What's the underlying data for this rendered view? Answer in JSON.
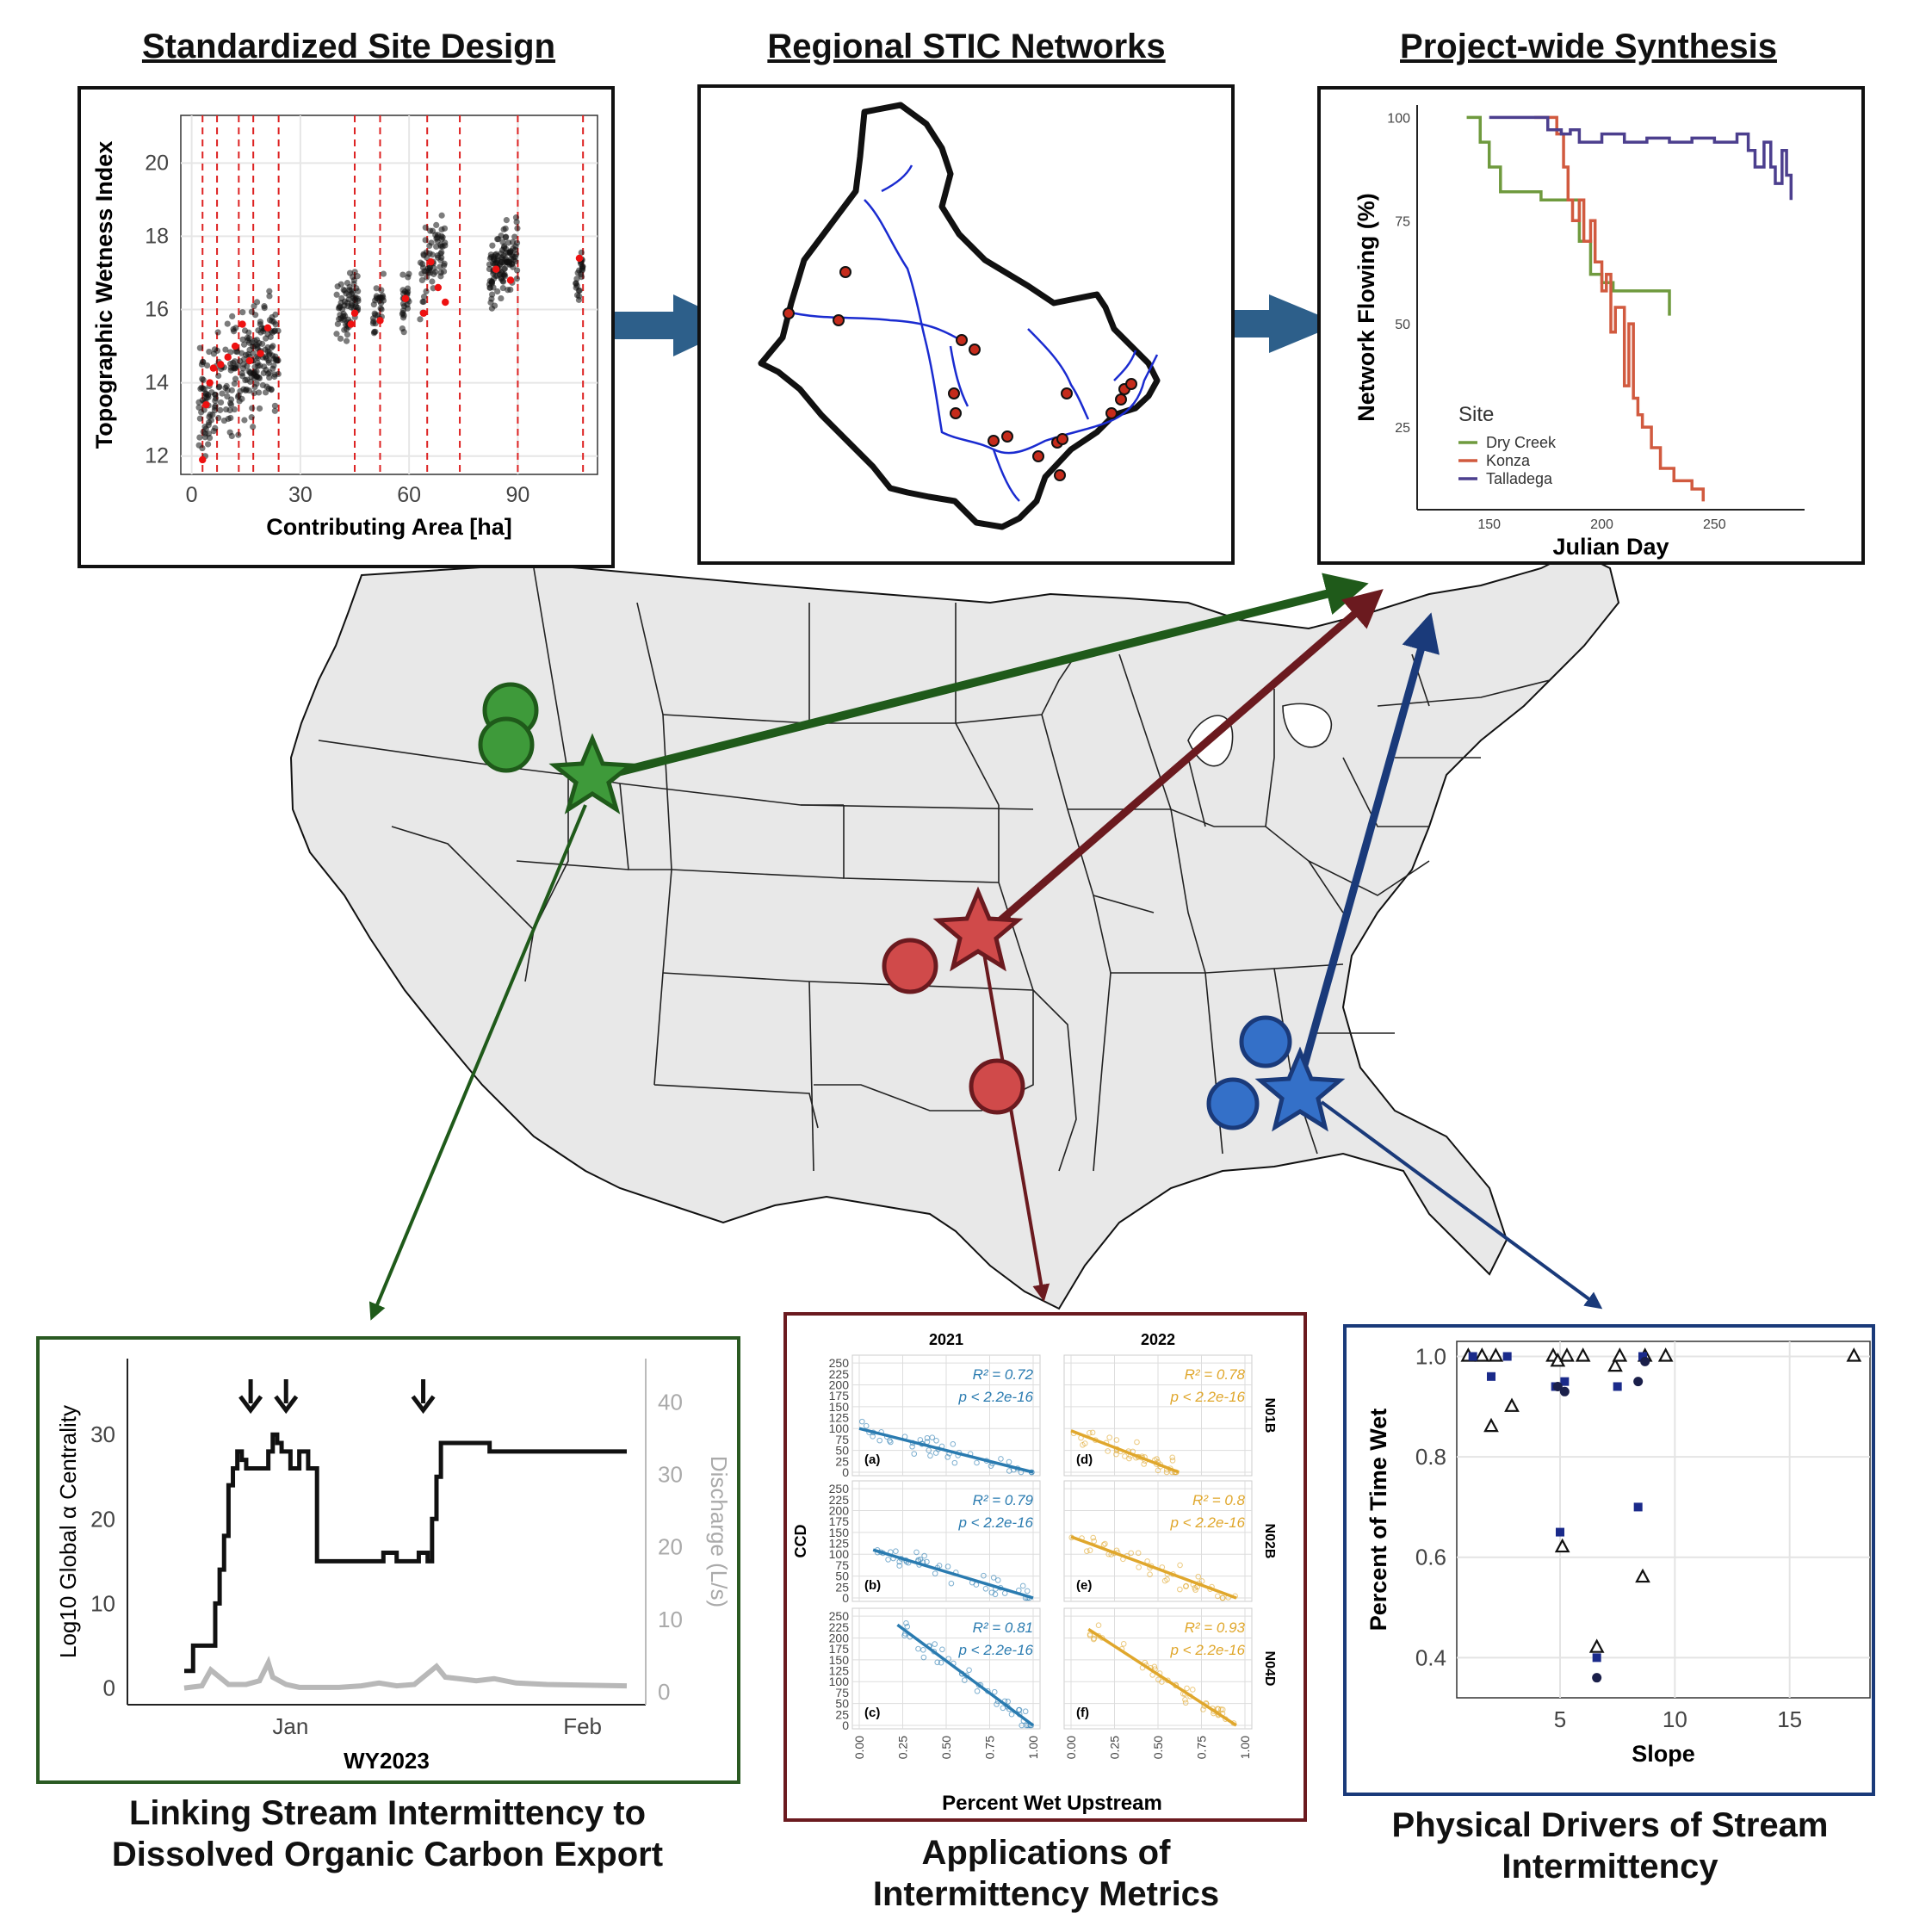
{
  "headings": {
    "site_design": "Standardized Site Design",
    "stic_networks": "Regional STIC Networks",
    "synthesis": "Project-wide Synthesis"
  },
  "captions": {
    "doc_line1": "Linking Stream Intermittency to",
    "doc_line2": "Dissolved Organic Carbon Export",
    "metrics_line1": "Applications of",
    "metrics_line2": "Intermittency Metrics",
    "drivers_line1": "Physical Drivers of Stream",
    "drivers_line2": "Intermittency"
  },
  "colors": {
    "green": "#2e8b2e",
    "green_dark": "#1f5a1a",
    "red": "#c94646",
    "red_dark": "#6b1a1f",
    "blue": "#2f6bc2",
    "blue_dark": "#1a3a7a",
    "flow_arrow": "#2d5f8a",
    "map_fill": "#e8e8e8"
  },
  "chart_data": [
    {
      "id": "twi",
      "type": "scatter",
      "xlabel": "Contributing Area [ha]",
      "ylabel": "Topographic Wetness Index",
      "xlim": [
        -3,
        112
      ],
      "ylim": [
        11.5,
        21.3
      ],
      "xticks": [
        "0",
        "30",
        "60",
        "90"
      ],
      "yticks": [
        "12",
        "14",
        "16",
        "18",
        "20"
      ],
      "dashed_x": [
        3,
        7,
        13,
        17,
        24,
        45,
        52,
        65,
        74,
        90,
        108
      ],
      "clusters": [
        {
          "x": [
            2,
            24
          ],
          "y": [
            12,
            16.5
          ],
          "n": 260
        },
        {
          "x": [
            40,
            46
          ],
          "y": [
            14.8,
            17.3
          ],
          "n": 70
        },
        {
          "x": [
            50,
            53
          ],
          "y": [
            15.2,
            17
          ],
          "n": 30
        },
        {
          "x": [
            58,
            60
          ],
          "y": [
            15,
            17.5
          ],
          "n": 25
        },
        {
          "x": [
            63,
            70
          ],
          "y": [
            15.5,
            19
          ],
          "n": 70
        },
        {
          "x": [
            82,
            90
          ],
          "y": [
            15.8,
            18.8
          ],
          "n": 120
        },
        {
          "x": [
            106,
            108
          ],
          "y": [
            15.6,
            17.8
          ],
          "n": 25
        }
      ],
      "red_points": [
        [
          3,
          11.9
        ],
        [
          4,
          13.4
        ],
        [
          5,
          14
        ],
        [
          6,
          14.4
        ],
        [
          8,
          14.5
        ],
        [
          10,
          14.7
        ],
        [
          12,
          15
        ],
        [
          14,
          15.6
        ],
        [
          16,
          14.6
        ],
        [
          19,
          14.8
        ],
        [
          21,
          15.5
        ],
        [
          44,
          15.6
        ],
        [
          45,
          15.9
        ],
        [
          52,
          15.7
        ],
        [
          59,
          16.3
        ],
        [
          64,
          15.9
        ],
        [
          66,
          17.3
        ],
        [
          68,
          16.6
        ],
        [
          70,
          16.2
        ],
        [
          84,
          17.1
        ],
        [
          88,
          16.8
        ],
        [
          107,
          17.4
        ]
      ]
    },
    {
      "id": "network",
      "type": "line",
      "xlabel": "Julian Day",
      "ylabel": "Network Flowing (%)",
      "xlim": [
        118,
        290
      ],
      "ylim": [
        5,
        103
      ],
      "xticks": [
        "150",
        "200",
        "250"
      ],
      "yticks": [
        "25",
        "50",
        "75",
        "100"
      ],
      "legend_title": "Site",
      "legend_position": "bottom-left",
      "series": [
        {
          "name": "Dry Creek",
          "color": "#6f9a3e",
          "points": [
            [
              140,
              100
            ],
            [
              145,
              100
            ],
            [
              146,
              94
            ],
            [
              150,
              88
            ],
            [
              155,
              82
            ],
            [
              165,
              82
            ],
            [
              170,
              82
            ],
            [
              173,
              80
            ],
            [
              185,
              80
            ],
            [
              190,
              70
            ],
            [
              195,
              62
            ],
            [
              200,
              60
            ],
            [
              205,
              58
            ],
            [
              210,
              58
            ],
            [
              215,
              58
            ],
            [
              225,
              58
            ],
            [
              230,
              58
            ],
            [
              230,
              52
            ]
          ]
        },
        {
          "name": "Konza",
          "color": "#d15a3f",
          "points": [
            [
              170,
              100
            ],
            [
              180,
              96
            ],
            [
              183,
              88
            ],
            [
              185,
              80
            ],
            [
              187,
              75
            ],
            [
              190,
              80
            ],
            [
              192,
              70
            ],
            [
              195,
              75
            ],
            [
              197,
              65
            ],
            [
              200,
              58
            ],
            [
              202,
              62
            ],
            [
              204,
              48
            ],
            [
              206,
              54
            ],
            [
              210,
              35
            ],
            [
              212,
              50
            ],
            [
              214,
              32
            ],
            [
              216,
              28
            ],
            [
              218,
              25
            ],
            [
              222,
              20
            ],
            [
              226,
              15
            ],
            [
              232,
              12
            ],
            [
              238,
              12
            ],
            [
              240,
              10
            ],
            [
              245,
              7
            ]
          ]
        },
        {
          "name": "Talladega",
          "color": "#4c3f8e",
          "points": [
            [
              150,
              100
            ],
            [
              160,
              100
            ],
            [
              170,
              100
            ],
            [
              176,
              97
            ],
            [
              182,
              96
            ],
            [
              186,
              97
            ],
            [
              190,
              94
            ],
            [
              200,
              96
            ],
            [
              210,
              94
            ],
            [
              220,
              95
            ],
            [
              230,
              94
            ],
            [
              240,
              95
            ],
            [
              250,
              94
            ],
            [
              260,
              96
            ],
            [
              265,
              92
            ],
            [
              268,
              88
            ],
            [
              272,
              94
            ],
            [
              275,
              88
            ],
            [
              277,
              84
            ],
            [
              280,
              92
            ],
            [
              282,
              86
            ],
            [
              284,
              80
            ]
          ]
        }
      ]
    },
    {
      "id": "centrality",
      "type": "line",
      "xlabel": "WY2023",
      "ylabel": "Log10 Global α Centrality",
      "y2label": "Discharge (L/s)",
      "xticks": [
        "Jan",
        "Feb"
      ],
      "yticks": [
        "0",
        "10",
        "20",
        "30"
      ],
      "y2ticks": [
        "0",
        "10",
        "20",
        "30",
        "40"
      ],
      "ylim": [
        -2,
        39
      ],
      "y2lim": [
        -1.8,
        46
      ],
      "centrality_points": [
        [
          0,
          2
        ],
        [
          2,
          5
        ],
        [
          6,
          5
        ],
        [
          7,
          10
        ],
        [
          8,
          14
        ],
        [
          9,
          18
        ],
        [
          10,
          24
        ],
        [
          11,
          26
        ],
        [
          12,
          28
        ],
        [
          13,
          27
        ],
        [
          14,
          26
        ],
        [
          18,
          26
        ],
        [
          19,
          28
        ],
        [
          20,
          30
        ],
        [
          21,
          29
        ],
        [
          22,
          28
        ],
        [
          24,
          26
        ],
        [
          26,
          28
        ],
        [
          28,
          26
        ],
        [
          30,
          15
        ],
        [
          44,
          15
        ],
        [
          45,
          16
        ],
        [
          47,
          16
        ],
        [
          48,
          15
        ],
        [
          52,
          15
        ],
        [
          53,
          16
        ],
        [
          55,
          15
        ],
        [
          56,
          20
        ],
        [
          57,
          25
        ],
        [
          58,
          29
        ],
        [
          68,
          29
        ],
        [
          69,
          28
        ],
        [
          100,
          28
        ]
      ],
      "discharge_points": [
        [
          0,
          0.5
        ],
        [
          4,
          0.8
        ],
        [
          6,
          3
        ],
        [
          8,
          2
        ],
        [
          10,
          1
        ],
        [
          14,
          1
        ],
        [
          17,
          1.5
        ],
        [
          19,
          4
        ],
        [
          20,
          2
        ],
        [
          23,
          1
        ],
        [
          26,
          0.6
        ],
        [
          35,
          0.6
        ],
        [
          40,
          0.8
        ],
        [
          44,
          1.2
        ],
        [
          48,
          0.8
        ],
        [
          52,
          1
        ],
        [
          55,
          2.5
        ],
        [
          57,
          3.5
        ],
        [
          59,
          2
        ],
        [
          62,
          1.8
        ],
        [
          66,
          1.5
        ],
        [
          70,
          1.8
        ],
        [
          75,
          1.2
        ],
        [
          82,
          1
        ],
        [
          90,
          0.9
        ],
        [
          100,
          0.8
        ]
      ],
      "event_arrows_x": [
        15,
        23,
        54
      ]
    },
    {
      "id": "ccd",
      "type": "scatter",
      "xlabel": "Percent Wet Upstream",
      "ylabel": "CCD",
      "columns": [
        "2021",
        "2022"
      ],
      "rows": [
        "N01B",
        "N02B",
        "N04D"
      ],
      "xticks": [
        "0.00",
        "0.25",
        "0.50",
        "0.75",
        "1.00"
      ],
      "yticks": [
        "0",
        "25",
        "50",
        "75",
        "100",
        "125",
        "150",
        "175",
        "200",
        "225",
        "250"
      ],
      "panels": [
        {
          "label": "(a)",
          "r2": "R² = 0.72",
          "p": "p < 2.2e-16",
          "color": "#2a7bb0",
          "fit": [
            [
              0,
              100
            ],
            [
              1,
              0
            ]
          ]
        },
        {
          "label": "(d)",
          "r2": "R² = 0.78",
          "p": "p < 2.2e-16",
          "color": "#e0a72c",
          "fit": [
            [
              0,
              95
            ],
            [
              0.62,
              0
            ]
          ]
        },
        {
          "label": "(b)",
          "r2": "R² = 0.79",
          "p": "p < 2.2e-16",
          "color": "#2a7bb0",
          "fit": [
            [
              0.08,
              110
            ],
            [
              1,
              0
            ]
          ]
        },
        {
          "label": "(e)",
          "r2": "R² = 0.8",
          "p": "p < 2.2e-16",
          "color": "#e0a72c",
          "fit": [
            [
              0,
              140
            ],
            [
              0.95,
              0
            ]
          ]
        },
        {
          "label": "(c)",
          "r2": "R² = 0.81",
          "p": "p < 2.2e-16",
          "color": "#2a7bb0",
          "fit": [
            [
              0.22,
              230
            ],
            [
              1,
              0
            ]
          ]
        },
        {
          "label": "(f)",
          "r2": "R² = 0.93",
          "p": "p < 2.2e-16",
          "color": "#e0a72c",
          "fit": [
            [
              0.1,
              220
            ],
            [
              0.95,
              0
            ]
          ]
        }
      ]
    },
    {
      "id": "slope",
      "type": "scatter",
      "xlabel": "Slope",
      "ylabel": "Percent of Time Wet",
      "xlim": [
        0.5,
        18.5
      ],
      "ylim": [
        0.32,
        1.03
      ],
      "xticks": [
        "5",
        "10",
        "15"
      ],
      "yticks": [
        "0.4",
        "0.6",
        "0.8",
        "1.0"
      ],
      "triangles": [
        [
          1,
          1
        ],
        [
          1.6,
          1
        ],
        [
          2,
          0.86
        ],
        [
          2.2,
          1
        ],
        [
          2.9,
          0.9
        ],
        [
          4.7,
          1
        ],
        [
          4.9,
          0.99
        ],
        [
          5.1,
          0.62
        ],
        [
          5.3,
          1
        ],
        [
          6,
          1
        ],
        [
          6.6,
          0.42
        ],
        [
          7.4,
          0.98
        ],
        [
          7.6,
          1
        ],
        [
          8.6,
          0.56
        ],
        [
          8.7,
          1
        ],
        [
          9.6,
          1
        ],
        [
          17.8,
          1
        ]
      ],
      "squares": [
        [
          1.2,
          1
        ],
        [
          2,
          0.96
        ],
        [
          2.7,
          1
        ],
        [
          4.8,
          0.94
        ],
        [
          5,
          0.65
        ],
        [
          5.2,
          0.95
        ],
        [
          6.6,
          0.4
        ],
        [
          7.5,
          0.94
        ],
        [
          8.4,
          0.7
        ],
        [
          8.6,
          1
        ]
      ],
      "circles": [
        [
          4.9,
          0.94
        ],
        [
          5.2,
          0.93
        ],
        [
          6.6,
          0.36
        ],
        [
          8.4,
          0.95
        ],
        [
          8.7,
          0.99
        ]
      ]
    }
  ]
}
